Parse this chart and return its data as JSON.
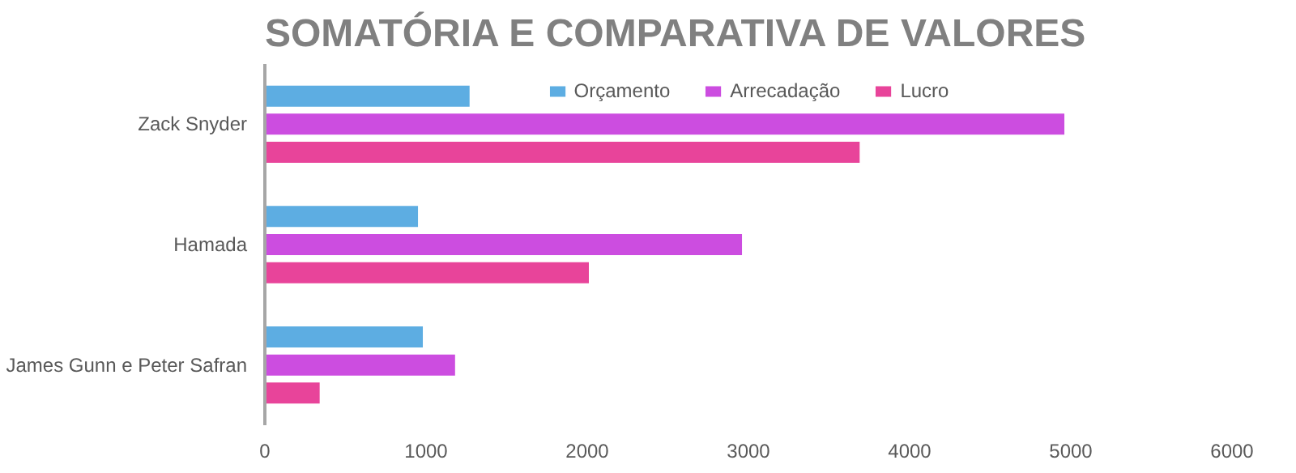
{
  "chart_data": {
    "type": "bar",
    "orientation": "horizontal",
    "title": "SOMATÓRIA E COMPARATIVA DE VALORES",
    "categories": [
      "Zack Snyder",
      "Hamada",
      "James Gunn e Peter Safran"
    ],
    "series": [
      {
        "name": "Orçamento",
        "color": "#5dade2",
        "values": [
          1270,
          950,
          980
        ]
      },
      {
        "name": "Arrecadação",
        "color": "#cc4de0",
        "values": [
          4960,
          2960,
          1180
        ]
      },
      {
        "name": "Lucro",
        "color": "#e8449a",
        "values": [
          3690,
          2010,
          340
        ]
      }
    ],
    "xlim": [
      0,
      6000
    ],
    "xticks": [
      0,
      1000,
      2000,
      3000,
      4000,
      5000,
      6000
    ],
    "grid": false,
    "legend": "top"
  }
}
